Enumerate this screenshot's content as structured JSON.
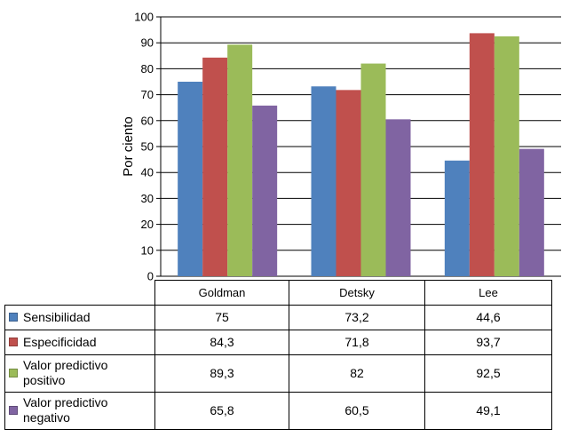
{
  "chart_data": {
    "type": "bar",
    "title": "",
    "ylabel": "Por ciento",
    "xlabel": "",
    "ylim": [
      0,
      100
    ],
    "yticks": [
      0,
      10,
      20,
      30,
      40,
      50,
      60,
      70,
      80,
      90,
      100
    ],
    "grid": true,
    "legend": "bottom-left table",
    "categories": [
      "Goldman",
      "Detsky",
      "Lee"
    ],
    "series": [
      {
        "name": "Sensibilidad",
        "color": "#4f81bd",
        "values": [
          75,
          73.2,
          44.6
        ],
        "labels": [
          "75",
          "73,2",
          "44,6"
        ]
      },
      {
        "name": "Especificidad",
        "color": "#c0504d",
        "values": [
          84.3,
          71.8,
          93.7
        ],
        "labels": [
          "84,3",
          "71,8",
          "93,7"
        ]
      },
      {
        "name": "Valor predictivo\npositivo",
        "color": "#9bbb59",
        "values": [
          89.3,
          82,
          92.5
        ],
        "labels": [
          "89,3",
          "82",
          "92,5"
        ]
      },
      {
        "name": "Valor predictivo\nnegativo",
        "color": "#8064a2",
        "values": [
          65.8,
          60.5,
          49.1
        ],
        "labels": [
          "65,8",
          "60,5",
          "49,1"
        ]
      }
    ]
  }
}
